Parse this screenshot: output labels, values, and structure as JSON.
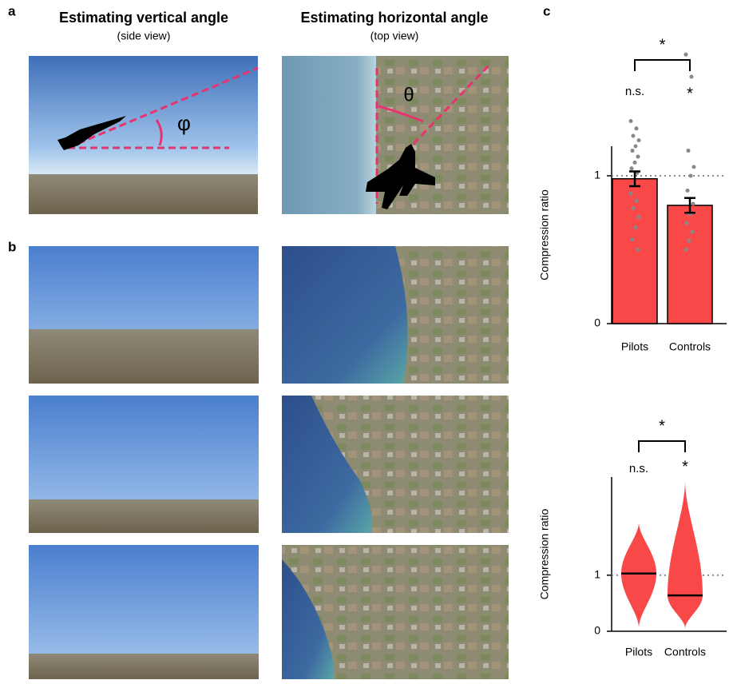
{
  "panel_a": {
    "label": "a",
    "left": {
      "title": "Estimating vertical angle",
      "subtitle": "(side view)",
      "angle_symbol": "φ"
    },
    "right": {
      "title": "Estimating horizontal angle",
      "subtitle": "(top view)",
      "angle_symbol": "θ"
    }
  },
  "panel_b": {
    "label": "b"
  },
  "panel_c": {
    "label": "c"
  },
  "chart_data": [
    {
      "type": "bar",
      "ylabel": "Compression ratio",
      "categories": [
        "Pilots",
        "Controls"
      ],
      "values": [
        0.98,
        0.8
      ],
      "errors": [
        0.05,
        0.05
      ],
      "color": "#f94848",
      "points": [
        [
          1.37,
          1.32,
          1.27,
          1.24,
          1.2,
          1.17,
          1.13,
          1.09,
          1.05,
          1.02,
          0.94,
          0.88,
          0.83,
          0.78,
          0.72,
          0.65,
          0.57,
          0.5
        ],
        [
          1.82,
          1.67,
          1.17,
          1.06,
          1.0,
          0.9,
          0.81,
          0.74,
          0.68,
          0.62,
          0.56,
          0.5
        ]
      ],
      "ylim": [
        0,
        1.2
      ],
      "yticks": [
        0,
        1
      ],
      "reference_line": 1,
      "annotations": [
        "n.s.",
        "*"
      ],
      "bracket_label": "*"
    },
    {
      "type": "violin",
      "ylabel": "Compression ratio",
      "categories": [
        "Pilots",
        "Controls"
      ],
      "medians": [
        1.03,
        0.64
      ],
      "mins": [
        0.05,
        0.05
      ],
      "maxs": [
        1.95,
        2.7
      ],
      "color": "#f94848",
      "ylim": [
        0,
        2.75
      ],
      "yticks": [
        0,
        1
      ],
      "reference_line": 1,
      "annotations": [
        "n.s.",
        "*"
      ],
      "bracket_label": "*"
    }
  ]
}
